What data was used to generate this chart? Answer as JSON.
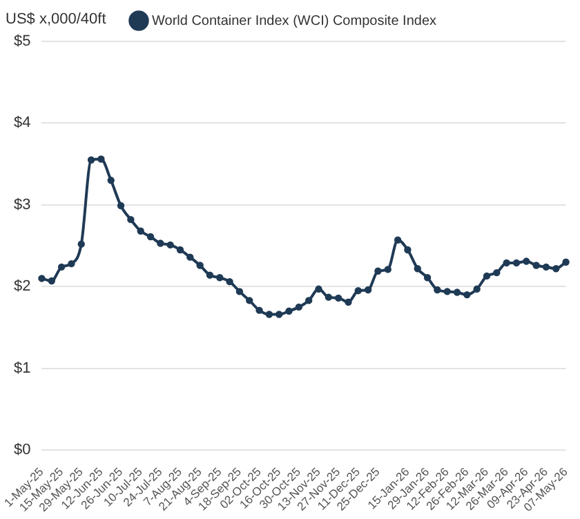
{
  "chart_data": {
    "type": "line",
    "ylabel": "US$ x,000/40ft",
    "categories": [
      "1-May-25",
      null,
      "15-May-25",
      null,
      "29-May-25",
      null,
      "12-Jun-25",
      null,
      "26-Jun-25",
      null,
      "10-Jul-25",
      null,
      "24-Jul-25",
      null,
      "7-Aug-25",
      null,
      "21-Aug-25",
      null,
      "4-Sep-25",
      null,
      "18-Sep-25",
      null,
      "02-Oct-25",
      null,
      "16-Oct-25",
      null,
      "30-Oct-25",
      null,
      "13-Nov-25",
      null,
      "27-Nov-25",
      null,
      "11-Dec-25",
      null,
      "25-Dec-25",
      null,
      null,
      "15-Jan-26",
      null,
      "29-Jan-26",
      null,
      "12-Feb-26",
      null,
      "26-Feb-26",
      null,
      "12-Mar-26",
      null,
      "26-Mar-26",
      null,
      "09-Apr-26",
      null,
      "23-Apr-26",
      null,
      "07-May-26"
    ],
    "series": [
      {
        "name": "World Container Index (WCI) Composite Index",
        "color": "#1f3a55",
        "values": [
          2.1,
          2.07,
          2.24,
          2.28,
          2.52,
          3.55,
          3.56,
          3.3,
          2.99,
          2.82,
          2.68,
          2.61,
          2.53,
          2.51,
          2.45,
          2.36,
          2.26,
          2.14,
          2.11,
          2.06,
          1.94,
          1.83,
          1.71,
          1.66,
          1.66,
          1.7,
          1.75,
          1.83,
          1.97,
          1.87,
          1.86,
          1.81,
          1.95,
          1.96,
          2.19,
          2.21,
          2.57,
          2.45,
          2.22,
          2.11,
          1.96,
          1.94,
          1.93,
          1.9,
          1.97,
          2.13,
          2.17,
          2.29,
          2.29,
          2.31,
          2.26,
          2.24,
          2.22,
          2.3
        ]
      }
    ],
    "ylim": [
      0,
      5
    ],
    "yticks": [
      {
        "value": 0,
        "label": "$0"
      },
      {
        "value": 1,
        "label": "$1"
      },
      {
        "value": 2,
        "label": "$2"
      },
      {
        "value": 3,
        "label": "$3"
      },
      {
        "value": 4,
        "label": "$4"
      },
      {
        "value": 5,
        "label": "$5"
      }
    ],
    "grid": "y",
    "legend": "top",
    "marker": "circle",
    "line_style": "solid"
  }
}
